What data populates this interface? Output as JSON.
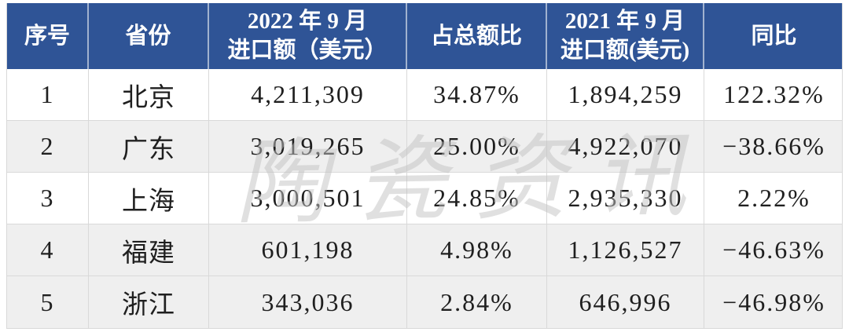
{
  "table": {
    "columns": [
      {
        "label": "序号"
      },
      {
        "label": "省份"
      },
      {
        "label_line1": "2022 年 9 月",
        "label_line2": "进口额（美元）"
      },
      {
        "label": "占总额比"
      },
      {
        "label_line1": "2021 年 9 月",
        "label_line2": "进口额(美元)"
      },
      {
        "label": "同比"
      }
    ],
    "rows": [
      {
        "no": "1",
        "province": "北京",
        "import_2022": "4,211,309",
        "share_of_total": "34.87%",
        "import_2021": "1,894,259",
        "yoy": "122.32%"
      },
      {
        "no": "2",
        "province": "广东",
        "import_2022": "3,019,265",
        "share_of_total": "25.00%",
        "import_2021": "4,922,070",
        "yoy": "−38.66%"
      },
      {
        "no": "3",
        "province": "上海",
        "import_2022": "3,000,501",
        "share_of_total": "24.85%",
        "import_2021": "2,935,330",
        "yoy": "2.22%"
      },
      {
        "no": "4",
        "province": "福建",
        "import_2022": "601,198",
        "share_of_total": "4.98%",
        "import_2021": "1,126,527",
        "yoy": "−46.63%"
      },
      {
        "no": "5",
        "province": "浙江",
        "import_2022": "343,036",
        "share_of_total": "2.84%",
        "import_2021": "646,996",
        "yoy": "−46.98%"
      }
    ]
  },
  "watermark": {
    "text": "陶瓷资讯"
  },
  "colors": {
    "header_bg": "#2f5496",
    "header_text": "#ffffff",
    "row_alt_bg": "#efefef",
    "border": "#d9d9d9",
    "body_text": "#1f1f1f",
    "watermark": "#c3c3c3"
  }
}
